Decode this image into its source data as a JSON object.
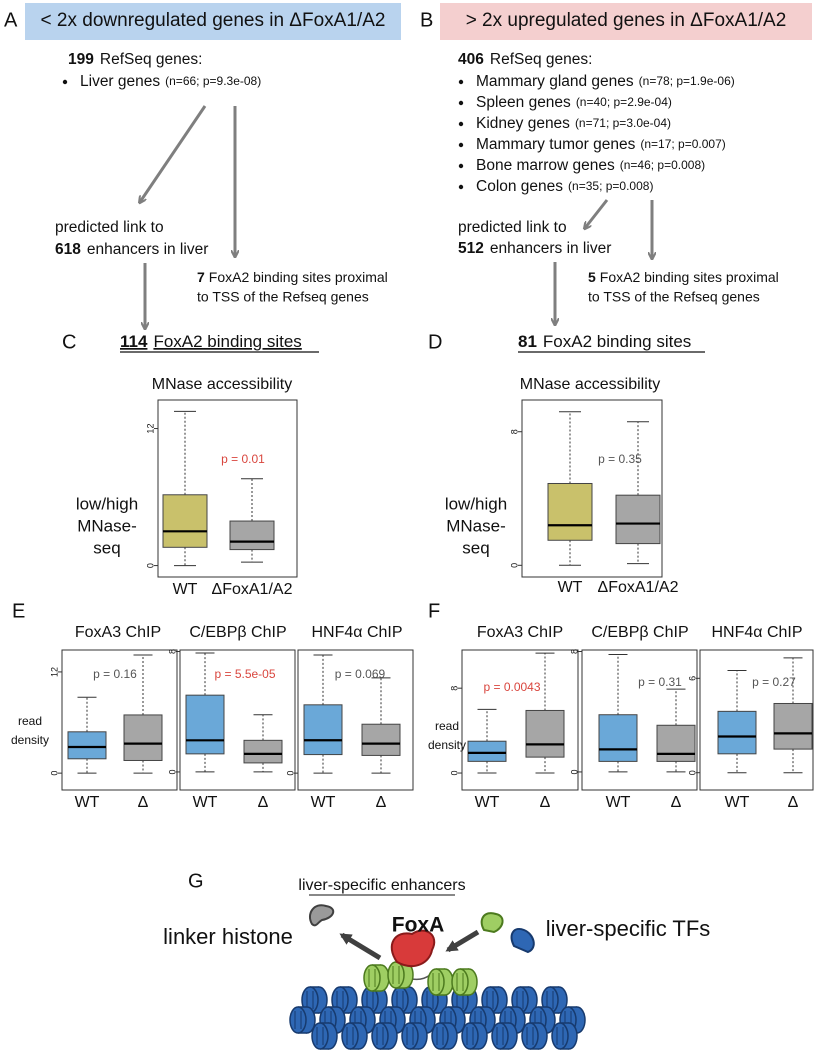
{
  "panels": {
    "a": {
      "letter": "A",
      "header": "< 2x downregulated genes in ΔFoxA1/A2",
      "gene_count": "199",
      "gene_label": "RefSeq genes:",
      "items": [
        {
          "name": "Liver genes",
          "stats": "(n=66; p=9.3e-08)"
        }
      ],
      "link_line1": "predicted link to",
      "enhancer_count": "618",
      "enhancer_label": "enhancers in liver",
      "tss_count": "7",
      "tss_line1": "FoxA2 binding sites proximal",
      "tss_line2": "to TSS of the Refseq genes"
    },
    "b": {
      "letter": "B",
      "header": "> 2x upregulated genes in ΔFoxA1/A2",
      "gene_count": "406",
      "gene_label": "RefSeq genes:",
      "items": [
        {
          "name": "Mammary gland genes",
          "stats": "(n=78; p=1.9e-06)"
        },
        {
          "name": "Spleen genes",
          "stats": "(n=40; p=2.9e-04)"
        },
        {
          "name": "Kidney genes",
          "stats": "(n=71; p=3.0e-04)"
        },
        {
          "name": "Mammary tumor genes",
          "stats": "(n=17; p=0.007)"
        },
        {
          "name": "Bone marrow genes",
          "stats": "(n=46; p=0.008)"
        },
        {
          "name": "Colon genes",
          "stats": "(n=35; p=0.008)"
        }
      ],
      "link_line1": "predicted link to",
      "enhancer_count": "512",
      "enhancer_label": "enhancers in liver",
      "tss_count": "5",
      "tss_line1": "FoxA2 binding sites proximal",
      "tss_line2": "to TSS of the Refseq genes"
    },
    "c": {
      "letter": "C",
      "site_count": "114",
      "site_label": "FoxA2 binding sites"
    },
    "d": {
      "letter": "D",
      "site_count": "81",
      "site_label": "FoxA2 binding sites"
    },
    "e": {
      "letter": "E"
    },
    "f": {
      "letter": "F"
    },
    "g": {
      "letter": "G",
      "title": "liver-specific enhancers",
      "foxa": "FoxA",
      "linker": "linker histone",
      "tfs": "liver-specific TFs"
    }
  },
  "chart_data": [
    {
      "type": "box",
      "title": "MNase accessibility",
      "ylabel": [
        "low/high",
        "MNase-",
        "seq"
      ],
      "categories": [
        "WT",
        "ΔFoxA1/A2"
      ],
      "boxes": [
        {
          "min": 0,
          "q1": 1.6,
          "median": 3,
          "q3": 6.2,
          "max": 13.5,
          "color": "#c9c16b"
        },
        {
          "min": 0.3,
          "q1": 1.4,
          "median": 2.1,
          "q3": 3.9,
          "max": 7.6,
          "color": "#a6a6a6"
        }
      ],
      "annotation": "p = 0.01",
      "annotation_color": "#d9463e",
      "ylim": [
        -1,
        14.5
      ],
      "yticks": [
        0,
        12
      ]
    },
    {
      "type": "box",
      "title": "MNase accessibility",
      "ylabel": [
        "low/high",
        "MNase-",
        "seq"
      ],
      "categories": [
        "WT",
        "ΔFoxA1/A2"
      ],
      "boxes": [
        {
          "min": 0,
          "q1": 1.5,
          "median": 2.4,
          "q3": 4.9,
          "max": 9.2,
          "color": "#c9c16b"
        },
        {
          "min": 0.1,
          "q1": 1.3,
          "median": 2.5,
          "q3": 4.2,
          "max": 8.6,
          "color": "#a6a6a6"
        }
      ],
      "annotation": "p = 0.35",
      "annotation_color": "#555555",
      "ylim": [
        -0.7,
        9.9
      ],
      "yticks": [
        0,
        8
      ]
    },
    {
      "type": "box",
      "title": "FoxA3 ChIP",
      "ylabel": [
        "read",
        "density"
      ],
      "categories": [
        "WT",
        "Δ"
      ],
      "boxes": [
        {
          "min": 0,
          "q1": 1.7,
          "median": 3.1,
          "q3": 4.9,
          "max": 9,
          "color": "#6aa8d8"
        },
        {
          "min": 0,
          "q1": 1.5,
          "median": 3.5,
          "q3": 6.9,
          "max": 14,
          "color": "#a6a6a6"
        }
      ],
      "annotation": "p = 0.16",
      "annotation_color": "#555555",
      "ylim": [
        -2,
        14.6
      ],
      "yticks": [
        0,
        12
      ]
    },
    {
      "type": "box",
      "title": "C/EBPβ ChIP",
      "categories": [
        "WT",
        "Δ"
      ],
      "boxes": [
        {
          "min": 0,
          "q1": 1.2,
          "median": 2.1,
          "q3": 5.1,
          "max": 7.9,
          "color": "#6aa8d8"
        },
        {
          "min": 0,
          "q1": 0.6,
          "median": 1.2,
          "q3": 2.1,
          "max": 3.8,
          "color": "#a6a6a6"
        }
      ],
      "annotation": "p = 5.5e-05",
      "annotation_color": "#d9463e",
      "ylim": [
        -1.2,
        8.1
      ],
      "yticks": [
        0,
        8
      ]
    },
    {
      "type": "box",
      "title": "HNF4α ChIP",
      "categories": [
        "WT",
        "Δ"
      ],
      "boxes": [
        {
          "min": 0,
          "q1": 2.2,
          "median": 3.9,
          "q3": 8.1,
          "max": 14,
          "color": "#6aa8d8"
        },
        {
          "min": 0,
          "q1": 2.1,
          "median": 3.5,
          "q3": 5.8,
          "max": 11.3,
          "color": "#a6a6a6"
        }
      ],
      "annotation": "p = 0.069",
      "annotation_color": "#555555",
      "ylim": [
        -2,
        14.6
      ],
      "yticks": [
        0
      ]
    },
    {
      "type": "box",
      "title": "FoxA3 ChIP",
      "ylabel": [
        "read",
        "density"
      ],
      "categories": [
        "WT",
        "Δ"
      ],
      "boxes": [
        {
          "min": 0,
          "q1": 1.1,
          "median": 1.9,
          "q3": 3,
          "max": 6,
          "color": "#6aa8d8"
        },
        {
          "min": 0,
          "q1": 1.5,
          "median": 2.7,
          "q3": 5.9,
          "max": 11.3,
          "color": "#a6a6a6"
        }
      ],
      "annotation": "p = 0.0043",
      "annotation_color": "#d9463e",
      "ylim": [
        -1.6,
        11.6
      ],
      "yticks": [
        0,
        8
      ]
    },
    {
      "type": "box",
      "title": "C/EBPβ ChIP",
      "categories": [
        "WT",
        "Δ"
      ],
      "boxes": [
        {
          "min": 0,
          "q1": 0.7,
          "median": 1.5,
          "q3": 3.8,
          "max": 7.8,
          "color": "#6aa8d8"
        },
        {
          "min": 0,
          "q1": 0.7,
          "median": 1.2,
          "q3": 3.1,
          "max": 5.5,
          "color": "#a6a6a6"
        }
      ],
      "annotation": "p = 0.31",
      "annotation_color": "#555555",
      "ylim": [
        -1.2,
        8.1
      ],
      "yticks": [
        0,
        8
      ]
    },
    {
      "type": "box",
      "title": "HNF4α ChIP",
      "categories": [
        "WT",
        "Δ"
      ],
      "boxes": [
        {
          "min": 0,
          "q1": 1.2,
          "median": 2.3,
          "q3": 3.9,
          "max": 6.5,
          "color": "#6aa8d8"
        },
        {
          "min": 0,
          "q1": 1.5,
          "median": 2.5,
          "q3": 4.4,
          "max": 7.3,
          "color": "#a6a6a6"
        }
      ],
      "annotation": "p = 0.27",
      "annotation_color": "#555555",
      "ylim": [
        -1.1,
        7.8
      ],
      "yticks": [
        0,
        6
      ]
    }
  ]
}
